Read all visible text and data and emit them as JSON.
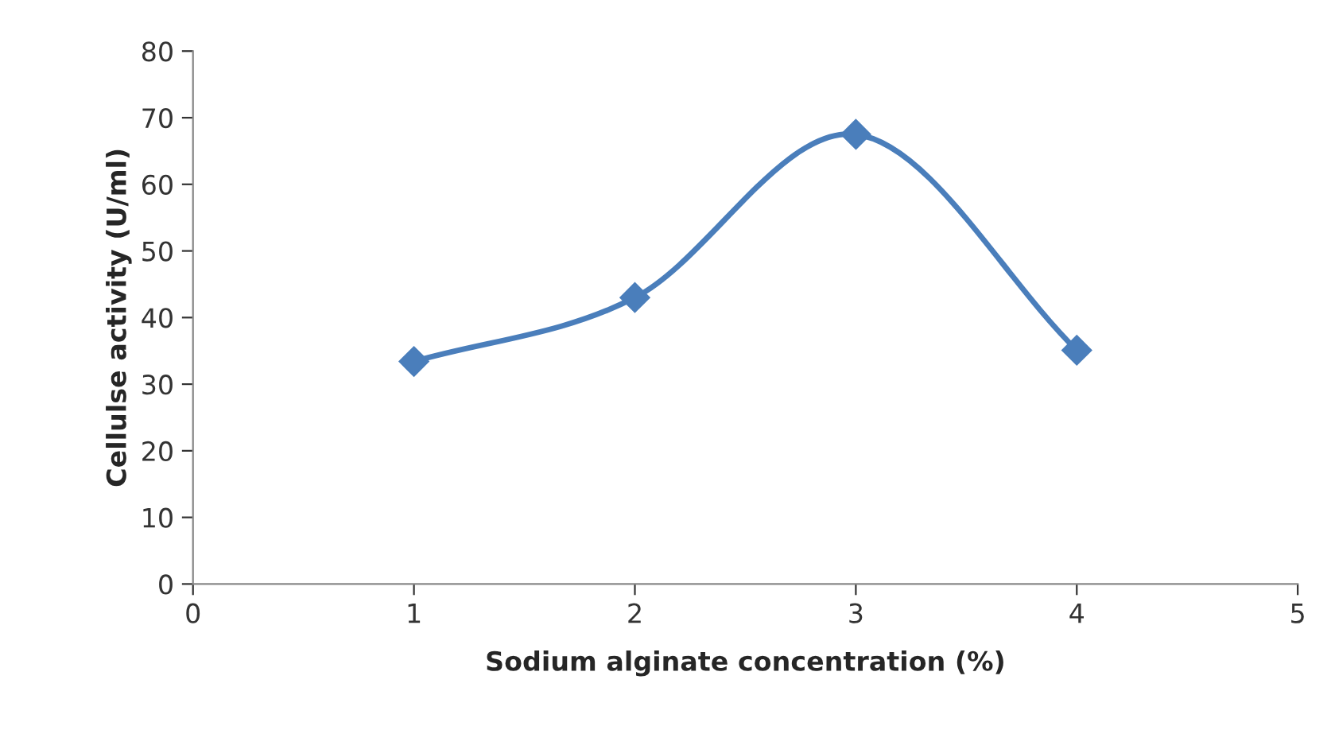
{
  "chart_data": {
    "type": "line",
    "xlabel": "Sodium alginate concentration (%)",
    "ylabel": "Cellulse activity (U/ml)",
    "x": [
      1,
      2,
      3,
      4
    ],
    "series": [
      {
        "color": "#4a7ebb",
        "values": [
          33.4,
          43.0,
          67.5,
          35.1
        ]
      }
    ],
    "xlim": [
      0,
      5
    ],
    "xticks": [
      0,
      1,
      2,
      3,
      4,
      5
    ],
    "ylim": [
      0,
      80
    ],
    "yticks": [
      0,
      10,
      20,
      30,
      40,
      50,
      60,
      70,
      80
    ],
    "marker": "diamond",
    "line_style": "solid",
    "grid": false,
    "legend": false
  }
}
